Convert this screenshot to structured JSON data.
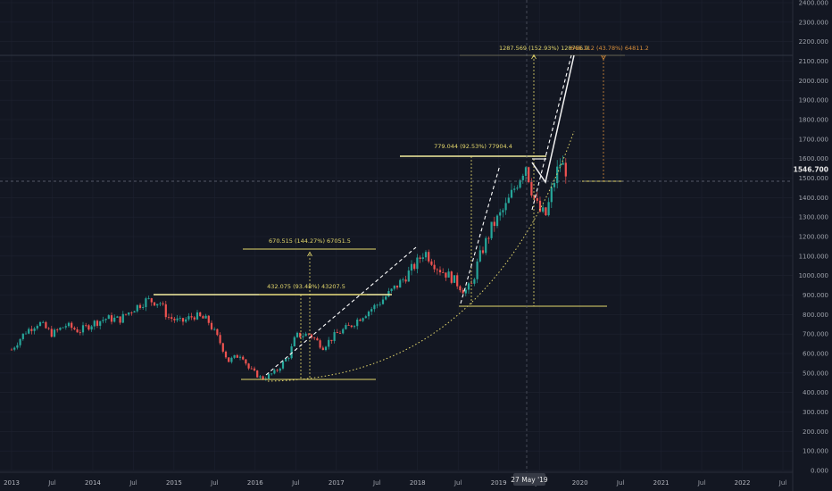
{
  "chart_data": {
    "type": "candlestick",
    "y_range": [
      0,
      2400
    ],
    "y_ticks": [
      "2400.000",
      "2300.000",
      "2200.000",
      "2100.000",
      "2000.000",
      "1900.000",
      "1800.000",
      "1700.000",
      "1600.000",
      "1500.000",
      "1400.000",
      "1300.000",
      "1200.000",
      "1100.000",
      "1000.000",
      "900.000",
      "800.000",
      "700.000",
      "600.000",
      "500.000",
      "400.000",
      "300.000",
      "200.000",
      "100.000",
      "0.000"
    ],
    "x_ticks": [
      {
        "label": "2013",
        "year": true
      },
      {
        "label": "Jul",
        "year": false
      },
      {
        "label": "2014",
        "year": true
      },
      {
        "label": "Jul",
        "year": false
      },
      {
        "label": "2015",
        "year": true
      },
      {
        "label": "Jul",
        "year": false
      },
      {
        "label": "2016",
        "year": true
      },
      {
        "label": "Jul",
        "year": false
      },
      {
        "label": "2017",
        "year": true
      },
      {
        "label": "Jul",
        "year": false
      },
      {
        "label": "2018",
        "year": true
      },
      {
        "label": "Jul",
        "year": false
      },
      {
        "label": "2019",
        "year": true
      },
      {
        "label": "Jul",
        "year": false
      },
      {
        "label": "2020",
        "year": true
      },
      {
        "label": "Jul",
        "year": false
      },
      {
        "label": "2021",
        "year": true
      },
      {
        "label": "Jul",
        "year": false
      },
      {
        "label": "2022",
        "year": true
      },
      {
        "label": "Jul",
        "year": false
      }
    ],
    "price_series": [
      [
        "2013-01",
        620
      ],
      [
        "2013-03",
        710
      ],
      [
        "2013-05",
        760
      ],
      [
        "2013-07",
        700
      ],
      [
        "2013-09",
        745
      ],
      [
        "2013-11",
        715
      ],
      [
        "2014-01",
        755
      ],
      [
        "2014-03",
        780
      ],
      [
        "2014-05",
        775
      ],
      [
        "2014-07",
        830
      ],
      [
        "2014-09",
        875
      ],
      [
        "2014-11",
        860
      ],
      [
        "2014-12",
        790
      ],
      [
        "2015-02",
        760
      ],
      [
        "2015-04",
        795
      ],
      [
        "2015-06",
        770
      ],
      [
        "2015-08",
        645
      ],
      [
        "2015-09",
        560
      ],
      [
        "2015-11",
        600
      ],
      [
        "2015-12",
        525
      ],
      [
        "2016-02",
        470
      ],
      [
        "2016-04",
        505
      ],
      [
        "2016-06",
        590
      ],
      [
        "2016-07",
        690
      ],
      [
        "2016-09",
        700
      ],
      [
        "2016-11",
        635
      ],
      [
        "2017-01",
        700
      ],
      [
        "2017-03",
        740
      ],
      [
        "2017-05",
        800
      ],
      [
        "2017-07",
        850
      ],
      [
        "2017-09",
        915
      ],
      [
        "2017-11",
        985
      ],
      [
        "2018-01",
        1070
      ],
      [
        "2018-02",
        1125
      ],
      [
        "2018-04",
        1040
      ],
      [
        "2018-06",
        990
      ],
      [
        "2018-08",
        920
      ],
      [
        "2018-09",
        950
      ],
      [
        "2018-10",
        1080
      ],
      [
        "2018-12",
        1250
      ],
      [
        "2019-02",
        1350
      ],
      [
        "2019-04",
        1500
      ],
      [
        "2019-05",
        1570
      ],
      [
        "2019-06",
        1420
      ],
      [
        "2019-07",
        1330
      ],
      [
        "2019-08",
        1310
      ],
      [
        "2019-09",
        1460
      ],
      [
        "2019-10",
        1580
      ],
      [
        "2019-11",
        1540
      ]
    ],
    "current_price": "1546.700",
    "cursor_date": "27 May '19",
    "annotations": [
      {
        "text": "670.515 (144.27%) 67051.5",
        "style": "yellow"
      },
      {
        "text": "432.075 (93.48%) 43207.5",
        "style": "yellow"
      },
      {
        "text": "779.044 (92.53%) 77904.4",
        "style": "yellow"
      },
      {
        "text": "1287.569 (152.93%) 128756.9",
        "style": "yellow"
      },
      {
        "text": "648.112 (43.78%) 64811.2",
        "style": "orange"
      }
    ],
    "colors": {
      "background": "#131722",
      "up": "#26a69a",
      "down": "#ef5350",
      "annotation": "#e5d86c",
      "annotation_orange": "#d98f3b",
      "trendline": "#f2f2f2",
      "grid": "#1e2230"
    }
  }
}
